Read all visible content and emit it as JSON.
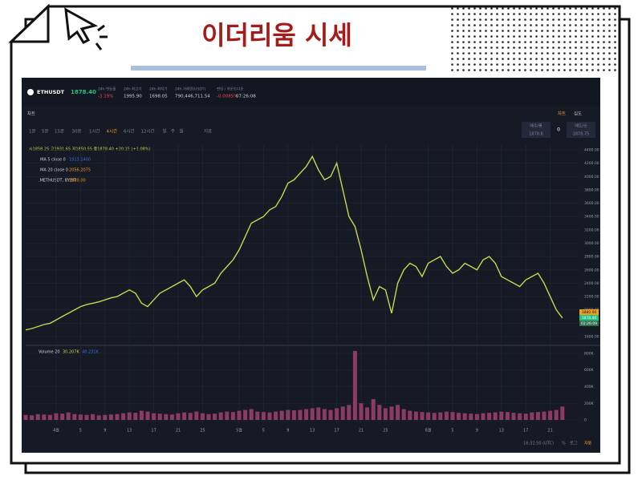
{
  "slide": {
    "title": "이더리움 시세"
  },
  "header": {
    "symbol": "ETHUSDT",
    "last": "1878.40",
    "stats": [
      {
        "label": "24h 변동률",
        "value": "-3.19%"
      },
      {
        "label": "24h 최고가",
        "value": "1995.90"
      },
      {
        "label": "24h 최저가",
        "value": "1698.05"
      },
      {
        "label": "24h 거래량(USDT)",
        "value": "790,446,711.54"
      },
      {
        "label": "펀딩 / 카운트다운",
        "value": "-0.0085%",
        "extra": "07:26:08"
      }
    ]
  },
  "panel": {
    "title": "차트",
    "tabs": [
      "차트",
      "심도"
    ]
  },
  "toolbar": {
    "intervals": [
      "1분",
      "5분",
      "15분",
      "30분",
      "1시간",
      "4시간",
      "6시간",
      "12시간",
      "일",
      "주",
      "월"
    ],
    "indicator": "지표"
  },
  "trade": {
    "buy_label": "매수/롱",
    "buy_price": "1878.6",
    "qty": "0",
    "sell_label": "매도/숏",
    "sell_price": "1878.75"
  },
  "legend": {
    "ohlc": "시1858.25 고1931.65 저1850.55 종1878.40 +20.15 (+1.08%)",
    "items": [
      {
        "name": "MA 5 close 0",
        "value": "1913.1400"
      },
      {
        "name": "MA 20 close 0",
        "value": "2056.2075"
      },
      {
        "name": ".METHUSDT, BYBIT",
        "value": "1880.00"
      }
    ],
    "volume_values": [
      "30.207K",
      "48.231K"
    ]
  },
  "price_tags": [
    "1880.00",
    "1878.40",
    "02:26:09"
  ],
  "footer": {
    "time": "16:32:50 (UTC)",
    "buttons": [
      "%",
      "로그",
      "자동"
    ]
  },
  "chart_data": {
    "type": "line",
    "categories": [
      null,
      null,
      null,
      null,
      null,
      "4월",
      null,
      null,
      null,
      "5",
      null,
      null,
      null,
      "9",
      null,
      null,
      null,
      "13",
      null,
      null,
      null,
      "17",
      null,
      null,
      null,
      "21",
      null,
      null,
      null,
      "25",
      null,
      null,
      null,
      null,
      null,
      "5월",
      null,
      null,
      null,
      "5",
      null,
      null,
      null,
      "9",
      null,
      null,
      null,
      "13",
      null,
      null,
      null,
      "17",
      null,
      null,
      null,
      "21",
      null,
      null,
      null,
      "25",
      null,
      null,
      null,
      null,
      null,
      null,
      "6월",
      null,
      null,
      null,
      "5",
      null,
      null,
      null,
      "9",
      null,
      null,
      null,
      "13",
      null,
      null,
      null,
      "17",
      null,
      null,
      null,
      "21",
      null,
      null
    ],
    "series": [
      {
        "color": "#c7d64f",
        "values": [
          1700,
          1720,
          1750,
          1780,
          1800,
          1850,
          1900,
          1950,
          2000,
          2050,
          2080,
          2100,
          2120,
          2150,
          2180,
          2200,
          2250,
          2300,
          2250,
          2100,
          2050,
          2150,
          2250,
          2300,
          2350,
          2400,
          2450,
          2350,
          2200,
          2300,
          2350,
          2400,
          2550,
          2650,
          2750,
          2900,
          3100,
          3300,
          3350,
          3400,
          3500,
          3550,
          3700,
          3900,
          3950,
          4050,
          4150,
          4300,
          4100,
          3950,
          4000,
          4200,
          3800,
          3400,
          3250,
          2900,
          2500,
          2150,
          2350,
          2300,
          1950,
          2400,
          2600,
          2700,
          2650,
          2500,
          2700,
          2750,
          2800,
          2650,
          2550,
          2600,
          2700,
          2650,
          2600,
          2750,
          2800,
          2700,
          2500,
          2450,
          2400,
          2350,
          2450,
          2500,
          2550,
          2400,
          2200,
          2000,
          1878.4
        ]
      },
      {
        "name": "Volume 20",
        "color": "#8e3b63",
        "axis": "y2",
        "values": [
          60000,
          55000,
          70000,
          65000,
          60000,
          80000,
          75000,
          90000,
          70000,
          65000,
          60000,
          70000,
          55000,
          60000,
          65000,
          70000,
          80000,
          90000,
          85000,
          110000,
          100000,
          80000,
          75000,
          70000,
          65000,
          80000,
          90000,
          85000,
          100000,
          80000,
          70000,
          75000,
          90000,
          100000,
          95000,
          110000,
          120000,
          130000,
          100000,
          95000,
          90000,
          100000,
          110000,
          120000,
          115000,
          120000,
          130000,
          140000,
          150000,
          130000,
          120000,
          140000,
          160000,
          180000,
          830000,
          200000,
          150000,
          250000,
          180000,
          140000,
          160000,
          180000,
          130000,
          110000,
          100000,
          95000,
          90000,
          85000,
          90000,
          100000,
          95000,
          85000,
          80000,
          75000,
          70000,
          80000,
          85000,
          90000,
          100000,
          95000,
          85000,
          80000,
          75000,
          90000,
          95000,
          100000,
          110000,
          120000,
          160000
        ]
      }
    ],
    "ylim": [
      1480,
      4484
    ],
    "yticks": [
      {
        "value": 1600,
        "label": "1600.00"
      },
      {
        "value": 1800,
        "label": "1800.00"
      },
      {
        "value": 2000,
        "label": "2000.00"
      },
      {
        "value": 2200,
        "label": "2200.00"
      },
      {
        "value": 2400,
        "label": "2400.00"
      },
      {
        "value": 2600,
        "label": "2600.00"
      },
      {
        "value": 2800,
        "label": "2800.00"
      },
      {
        "value": 3000,
        "label": "3000.00"
      },
      {
        "value": 3200,
        "label": "3200.00"
      },
      {
        "value": 3400,
        "label": "3400.00"
      },
      {
        "value": 3600,
        "label": "3600.00"
      },
      {
        "value": 3800,
        "label": "3800.00"
      },
      {
        "value": 4000,
        "label": "4000.00"
      },
      {
        "value": 4200,
        "label": "4200.00"
      },
      {
        "value": 4400,
        "label": "4400.00"
      }
    ],
    "y2lim": [
      -38500,
      886700
    ],
    "y2ticks": [
      0,
      {
        "value": 200000,
        "label": "200K"
      },
      {
        "value": 400000,
        "label": "400K"
      },
      {
        "value": 600000,
        "label": "600K"
      },
      {
        "value": 800000,
        "label": "800K"
      }
    ],
    "grid": true
  }
}
